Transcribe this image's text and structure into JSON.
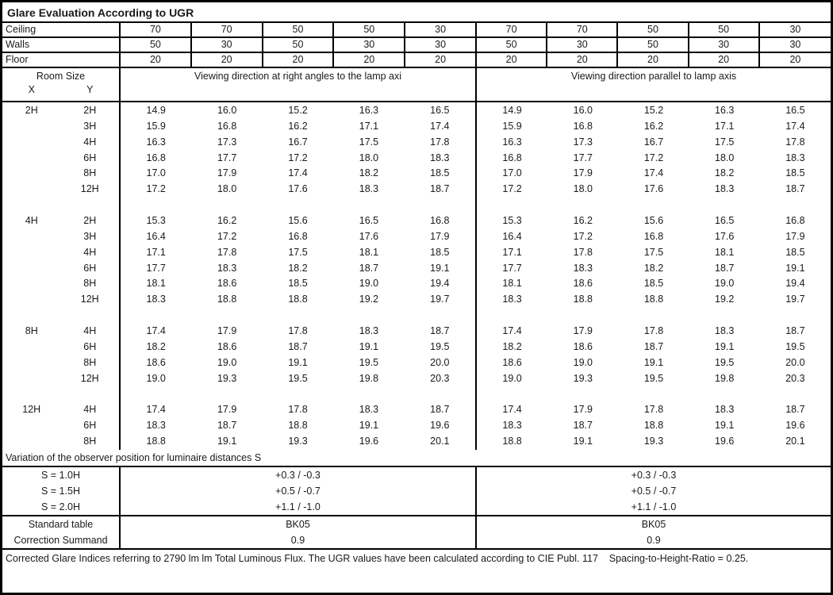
{
  "title": "Glare Evaluation According to UGR",
  "surface_rows": [
    {
      "label": "Ceiling",
      "values": [
        "70",
        "70",
        "50",
        "50",
        "30",
        "70",
        "70",
        "50",
        "50",
        "30"
      ]
    },
    {
      "label": "Walls",
      "values": [
        "50",
        "30",
        "50",
        "30",
        "30",
        "50",
        "30",
        "50",
        "30",
        "30"
      ]
    },
    {
      "label": "Floor",
      "values": [
        "20",
        "20",
        "20",
        "20",
        "20",
        "20",
        "20",
        "20",
        "20",
        "20"
      ]
    }
  ],
  "header": {
    "room_size_label": "Room Size",
    "x_label": "X",
    "y_label": "Y",
    "left_direction_label": "Viewing direction at right angles to the lamp axi",
    "right_direction_label": "Viewing direction parallel to lamp axis"
  },
  "room_groups": [
    {
      "x": "2H",
      "rows": [
        {
          "y": "2H",
          "left": [
            "14.9",
            "16.0",
            "15.2",
            "16.3",
            "16.5"
          ],
          "right": [
            "14.9",
            "16.0",
            "15.2",
            "16.3",
            "16.5"
          ]
        },
        {
          "y": "3H",
          "left": [
            "15.9",
            "16.8",
            "16.2",
            "17.1",
            "17.4"
          ],
          "right": [
            "15.9",
            "16.8",
            "16.2",
            "17.1",
            "17.4"
          ]
        },
        {
          "y": "4H",
          "left": [
            "16.3",
            "17.3",
            "16.7",
            "17.5",
            "17.8"
          ],
          "right": [
            "16.3",
            "17.3",
            "16.7",
            "17.5",
            "17.8"
          ]
        },
        {
          "y": "6H",
          "left": [
            "16.8",
            "17.7",
            "17.2",
            "18.0",
            "18.3"
          ],
          "right": [
            "16.8",
            "17.7",
            "17.2",
            "18.0",
            "18.3"
          ]
        },
        {
          "y": "8H",
          "left": [
            "17.0",
            "17.9",
            "17.4",
            "18.2",
            "18.5"
          ],
          "right": [
            "17.0",
            "17.9",
            "17.4",
            "18.2",
            "18.5"
          ]
        },
        {
          "y": "12H",
          "left": [
            "17.2",
            "18.0",
            "17.6",
            "18.3",
            "18.7"
          ],
          "right": [
            "17.2",
            "18.0",
            "17.6",
            "18.3",
            "18.7"
          ]
        }
      ]
    },
    {
      "x": "4H",
      "rows": [
        {
          "y": "2H",
          "left": [
            "15.3",
            "16.2",
            "15.6",
            "16.5",
            "16.8"
          ],
          "right": [
            "15.3",
            "16.2",
            "15.6",
            "16.5",
            "16.8"
          ]
        },
        {
          "y": "3H",
          "left": [
            "16.4",
            "17.2",
            "16.8",
            "17.6",
            "17.9"
          ],
          "right": [
            "16.4",
            "17.2",
            "16.8",
            "17.6",
            "17.9"
          ]
        },
        {
          "y": "4H",
          "left": [
            "17.1",
            "17.8",
            "17.5",
            "18.1",
            "18.5"
          ],
          "right": [
            "17.1",
            "17.8",
            "17.5",
            "18.1",
            "18.5"
          ]
        },
        {
          "y": "6H",
          "left": [
            "17.7",
            "18.3",
            "18.2",
            "18.7",
            "19.1"
          ],
          "right": [
            "17.7",
            "18.3",
            "18.2",
            "18.7",
            "19.1"
          ]
        },
        {
          "y": "8H",
          "left": [
            "18.1",
            "18.6",
            "18.5",
            "19.0",
            "19.4"
          ],
          "right": [
            "18.1",
            "18.6",
            "18.5",
            "19.0",
            "19.4"
          ]
        },
        {
          "y": "12H",
          "left": [
            "18.3",
            "18.8",
            "18.8",
            "19.2",
            "19.7"
          ],
          "right": [
            "18.3",
            "18.8",
            "18.8",
            "19.2",
            "19.7"
          ]
        }
      ]
    },
    {
      "x": "8H",
      "rows": [
        {
          "y": "4H",
          "left": [
            "17.4",
            "17.9",
            "17.8",
            "18.3",
            "18.7"
          ],
          "right": [
            "17.4",
            "17.9",
            "17.8",
            "18.3",
            "18.7"
          ]
        },
        {
          "y": "6H",
          "left": [
            "18.2",
            "18.6",
            "18.7",
            "19.1",
            "19.5"
          ],
          "right": [
            "18.2",
            "18.6",
            "18.7",
            "19.1",
            "19.5"
          ]
        },
        {
          "y": "8H",
          "left": [
            "18.6",
            "19.0",
            "19.1",
            "19.5",
            "20.0"
          ],
          "right": [
            "18.6",
            "19.0",
            "19.1",
            "19.5",
            "20.0"
          ]
        },
        {
          "y": "12H",
          "left": [
            "19.0",
            "19.3",
            "19.5",
            "19.8",
            "20.3"
          ],
          "right": [
            "19.0",
            "19.3",
            "19.5",
            "19.8",
            "20.3"
          ]
        }
      ]
    },
    {
      "x": "12H",
      "rows": [
        {
          "y": "4H",
          "left": [
            "17.4",
            "17.9",
            "17.8",
            "18.3",
            "18.7"
          ],
          "right": [
            "17.4",
            "17.9",
            "17.8",
            "18.3",
            "18.7"
          ]
        },
        {
          "y": "6H",
          "left": [
            "18.3",
            "18.7",
            "18.8",
            "19.1",
            "19.6"
          ],
          "right": [
            "18.3",
            "18.7",
            "18.8",
            "19.1",
            "19.6"
          ]
        },
        {
          "y": "8H",
          "left": [
            "18.8",
            "19.1",
            "19.3",
            "19.6",
            "20.1"
          ],
          "right": [
            "18.8",
            "19.1",
            "19.3",
            "19.6",
            "20.1"
          ]
        }
      ]
    }
  ],
  "variation_label": "Variation of the observer position for luminaire distances S",
  "variation_rows": [
    {
      "label": "S = 1.0H",
      "left": "+0.3 / -0.3",
      "right": "+0.3 / -0.3"
    },
    {
      "label": "S = 1.5H",
      "left": "+0.5 / -0.7",
      "right": "+0.5 / -0.7"
    },
    {
      "label": "S = 2.0H",
      "left": "+1.1 / -1.0",
      "right": "+1.1 / -1.0"
    }
  ],
  "summary_rows": [
    {
      "label": "Standard table",
      "left": "BK05",
      "right": "BK05"
    },
    {
      "label": "Correction Summand",
      "left": "0.9",
      "right": "0.9"
    }
  ],
  "footer": "Corrected Glare Indices referring to 2790 lm lm Total Luminous Flux. The UGR values have been calculated according to CIE Publ. 117    Spacing-to-Height-Ratio = 0.25."
}
